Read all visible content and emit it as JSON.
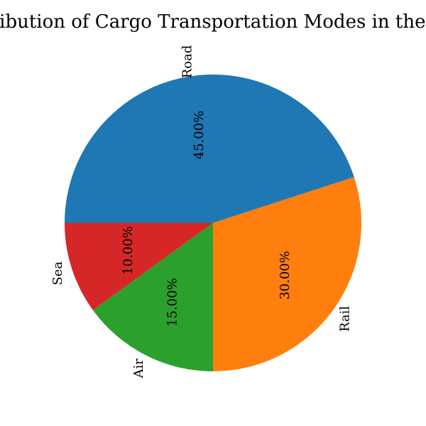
{
  "chart_data": {
    "type": "pie",
    "title": "Distribution of Cargo Transportation Modes in the USA",
    "categories": [
      "Road",
      "Rail",
      "Air",
      "Sea"
    ],
    "values": [
      45,
      30,
      15,
      10
    ],
    "value_labels": [
      "45.00%",
      "30.00%",
      "15.00%",
      "10.00%"
    ],
    "colors": [
      "#1f77b4",
      "#ff7f0e",
      "#2ca02c",
      "#d62728"
    ],
    "start_angle_deg": 180,
    "direction": "clockwise",
    "label_rotation": "vertical",
    "legend": "none"
  }
}
